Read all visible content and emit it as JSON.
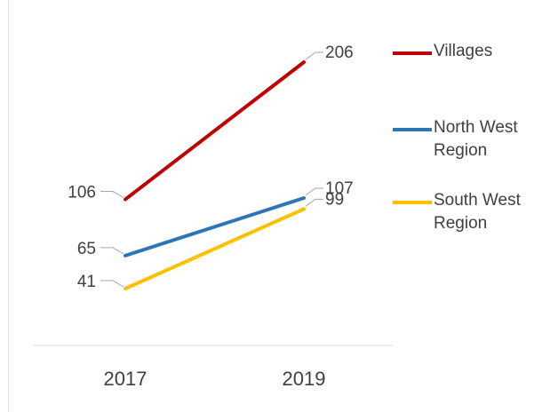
{
  "chart_data": {
    "type": "line",
    "categories": [
      "2017",
      "2019"
    ],
    "series": [
      {
        "name": "Villages",
        "values": [
          106,
          206
        ],
        "color": "#C00000"
      },
      {
        "name": "North West Region",
        "values": [
          65,
          107
        ],
        "color": "#2E75B6"
      },
      {
        "name": "South West Region",
        "values": [
          41,
          99
        ],
        "color": "#FFC000"
      }
    ],
    "data_labels": true,
    "legend_position": "right",
    "grid": false,
    "y_axis_visible": false
  }
}
